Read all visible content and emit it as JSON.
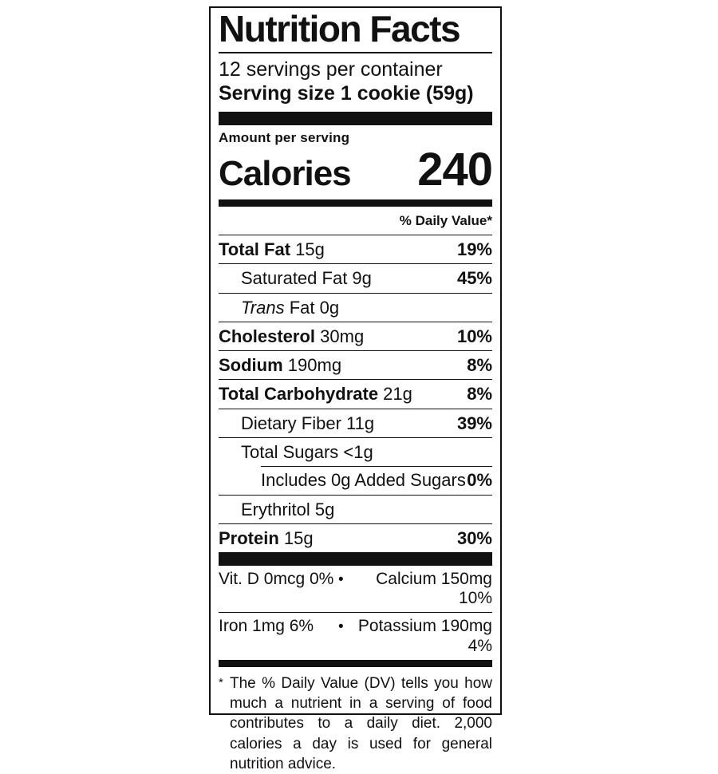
{
  "colors": {
    "ink": "#111111",
    "background": "#ffffff"
  },
  "label": {
    "title": "Nutrition Facts",
    "servings_per_container": "12 servings per container",
    "serving_size": "Serving size 1 cookie (59g)",
    "amount_per_serving": "Amount per serving",
    "calories_label": "Calories",
    "calories_value": "240",
    "daily_value_header": "% Daily Value*",
    "rows": [
      {
        "bold_name": "Total Fat",
        "amount": "15g",
        "dv": "19%",
        "indent": 0
      },
      {
        "plain_name": "Saturated Fat",
        "amount": "9g",
        "dv": "45%",
        "indent": 1
      },
      {
        "italic_name": "Trans",
        "plain_name": "Fat",
        "amount": "0g",
        "dv": "",
        "indent": 1
      },
      {
        "bold_name": "Cholesterol",
        "amount": "30mg",
        "dv": "10%",
        "indent": 0
      },
      {
        "bold_name": "Sodium",
        "amount": "190mg",
        "dv": "8%",
        "indent": 0
      },
      {
        "bold_name": "Total Carbohydrate",
        "amount": "21g",
        "dv": "8%",
        "indent": 0
      },
      {
        "plain_name": "Dietary Fiber",
        "amount": "11g",
        "dv": "39%",
        "indent": 1
      },
      {
        "plain_name": "Total Sugars",
        "amount": "<1g",
        "dv": "",
        "indent": 1
      },
      {
        "plain_name": "Includes 0g Added Sugars",
        "amount": "",
        "dv": "0%",
        "indent": 2,
        "divider_indent": true
      },
      {
        "plain_name": "Erythritol",
        "amount": "5g",
        "dv": "",
        "indent": 1
      },
      {
        "bold_name": "Protein",
        "amount": "15g",
        "dv": "30%",
        "indent": 0
      }
    ],
    "micronutrient_separator": "•",
    "micronutrients": [
      {
        "left": "Vit. D 0mcg 0%",
        "right": "Calcium 150mg 10%"
      },
      {
        "left": "Iron 1mg 6%",
        "right": "Potassium 190mg 4%"
      }
    ],
    "footnote_marker": "*",
    "footnote": "The % Daily Value (DV) tells you how much a nutrient in a serving of food contributes to a daily diet. 2,000 calories a day is used for general nutrition advice."
  }
}
